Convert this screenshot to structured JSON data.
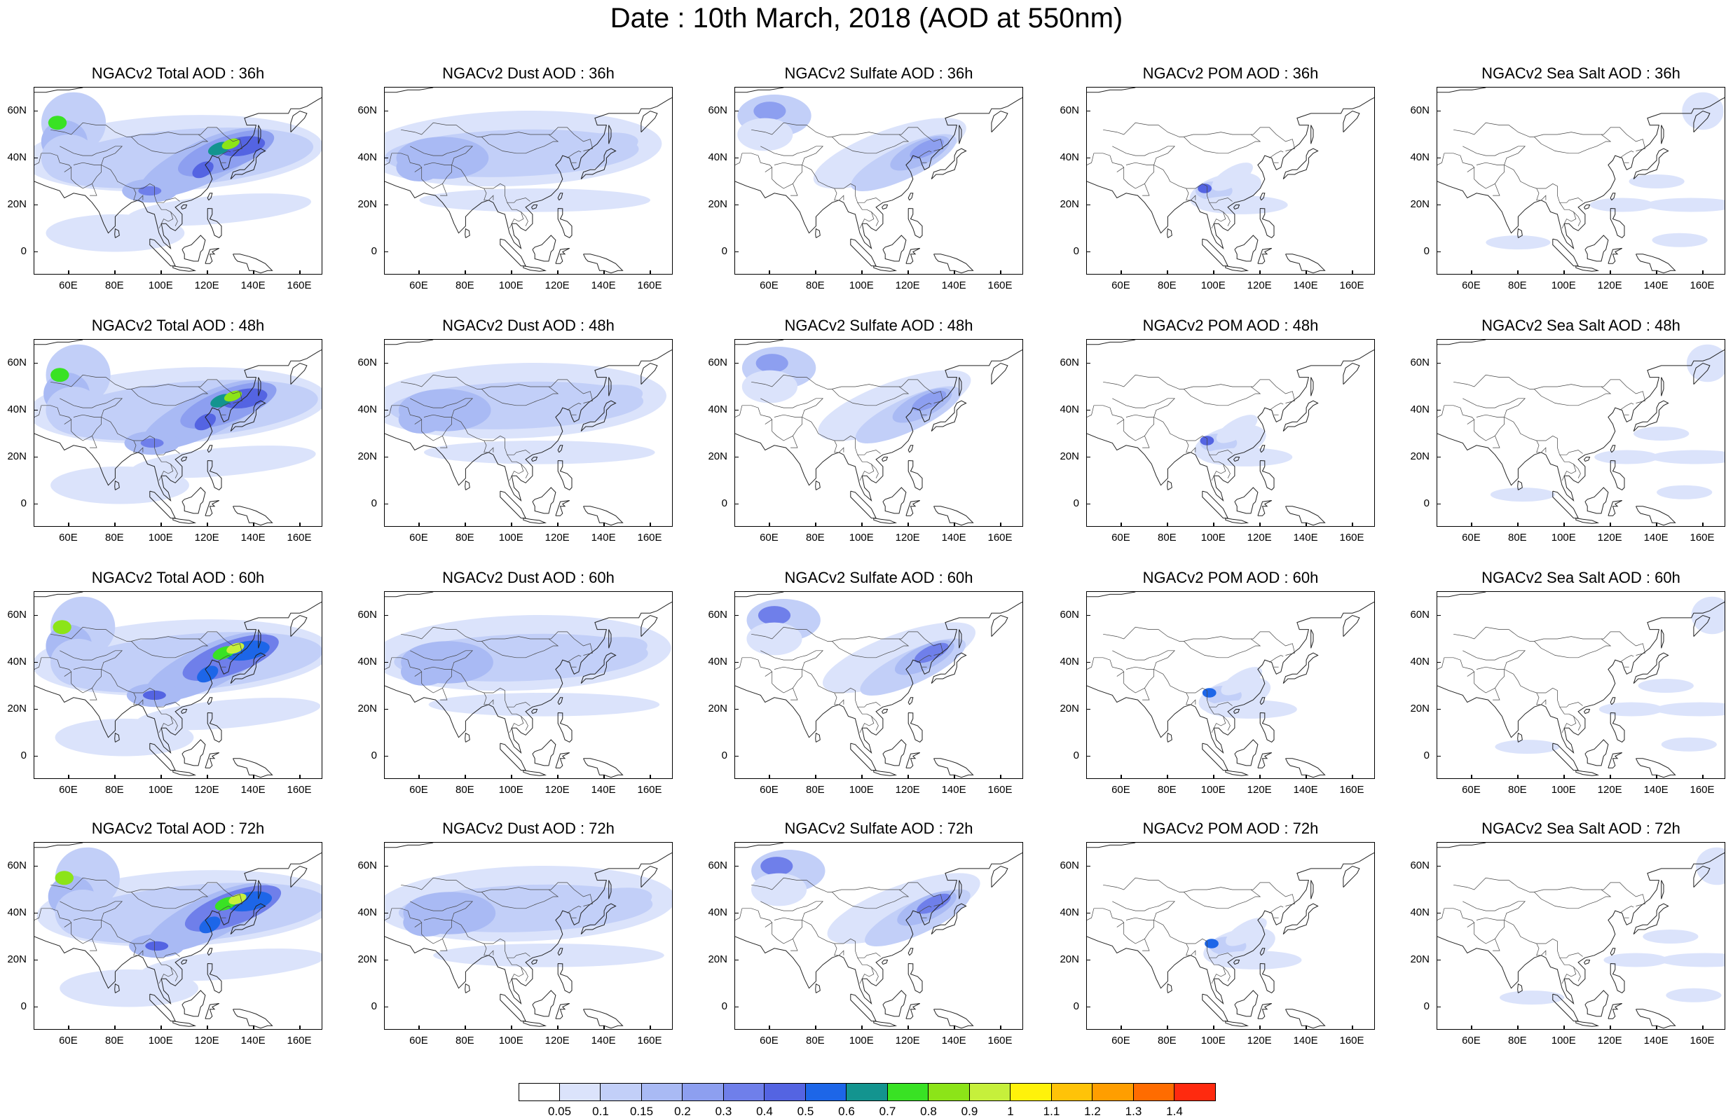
{
  "title": "Date : 10th March, 2018 (AOD at 550nm)",
  "axes": {
    "x_ticks": [
      "60E",
      "80E",
      "100E",
      "120E",
      "140E",
      "160E"
    ],
    "y_ticks": [
      "60N",
      "40N",
      "20N",
      "0"
    ]
  },
  "panels": [
    [
      {
        "title": "NGACv2 Total AOD : 36h",
        "variable": "total",
        "hour": 36
      },
      {
        "title": "NGACv2 Dust AOD : 36h",
        "variable": "dust",
        "hour": 36
      },
      {
        "title": "NGACv2 Sulfate AOD : 36h",
        "variable": "sulfate",
        "hour": 36
      },
      {
        "title": "NGACv2 POM AOD : 36h",
        "variable": "pom",
        "hour": 36
      },
      {
        "title": "NGACv2 Sea Salt AOD : 36h",
        "variable": "seasalt",
        "hour": 36
      }
    ],
    [
      {
        "title": "NGACv2 Total AOD : 48h",
        "variable": "total",
        "hour": 48
      },
      {
        "title": "NGACv2 Dust AOD : 48h",
        "variable": "dust",
        "hour": 48
      },
      {
        "title": "NGACv2 Sulfate AOD : 48h",
        "variable": "sulfate",
        "hour": 48
      },
      {
        "title": "NGACv2 POM AOD : 48h",
        "variable": "pom",
        "hour": 48
      },
      {
        "title": "NGACv2 Sea Salt AOD : 48h",
        "variable": "seasalt",
        "hour": 48
      }
    ],
    [
      {
        "title": "NGACv2 Total AOD : 60h",
        "variable": "total",
        "hour": 60
      },
      {
        "title": "NGACv2 Dust AOD : 60h",
        "variable": "dust",
        "hour": 60
      },
      {
        "title": "NGACv2 Sulfate AOD : 60h",
        "variable": "sulfate",
        "hour": 60
      },
      {
        "title": "NGACv2 POM AOD : 60h",
        "variable": "pom",
        "hour": 60
      },
      {
        "title": "NGACv2 Sea Salt AOD : 60h",
        "variable": "seasalt",
        "hour": 60
      }
    ],
    [
      {
        "title": "NGACv2 Total AOD : 72h",
        "variable": "total",
        "hour": 72
      },
      {
        "title": "NGACv2 Dust AOD : 72h",
        "variable": "dust",
        "hour": 72
      },
      {
        "title": "NGACv2 Sulfate AOD : 72h",
        "variable": "sulfate",
        "hour": 72
      },
      {
        "title": "NGACv2 POM AOD : 72h",
        "variable": "pom",
        "hour": 72
      },
      {
        "title": "NGACv2 Sea Salt  AOD : 72h",
        "variable": "seasalt",
        "hour": 72
      }
    ]
  ],
  "colorbar": {
    "labels": [
      "0.05",
      "0.1",
      "0.15",
      "0.2",
      "0.3",
      "0.4",
      "0.5",
      "0.6",
      "0.7",
      "0.8",
      "0.9",
      "1",
      "1.1",
      "1.2",
      "1.3",
      "1.4"
    ],
    "colors": [
      "#ffffff",
      "#dbe3fb",
      "#c2cff8",
      "#a9baf4",
      "#8d9ff0",
      "#6f7fea",
      "#5464e2",
      "#1d66e8",
      "#13948f",
      "#39e224",
      "#8ce418",
      "#c6f03b",
      "#fff20a",
      "#ffc308",
      "#ff9e00",
      "#ff6c00",
      "#ff2a0f"
    ]
  }
}
